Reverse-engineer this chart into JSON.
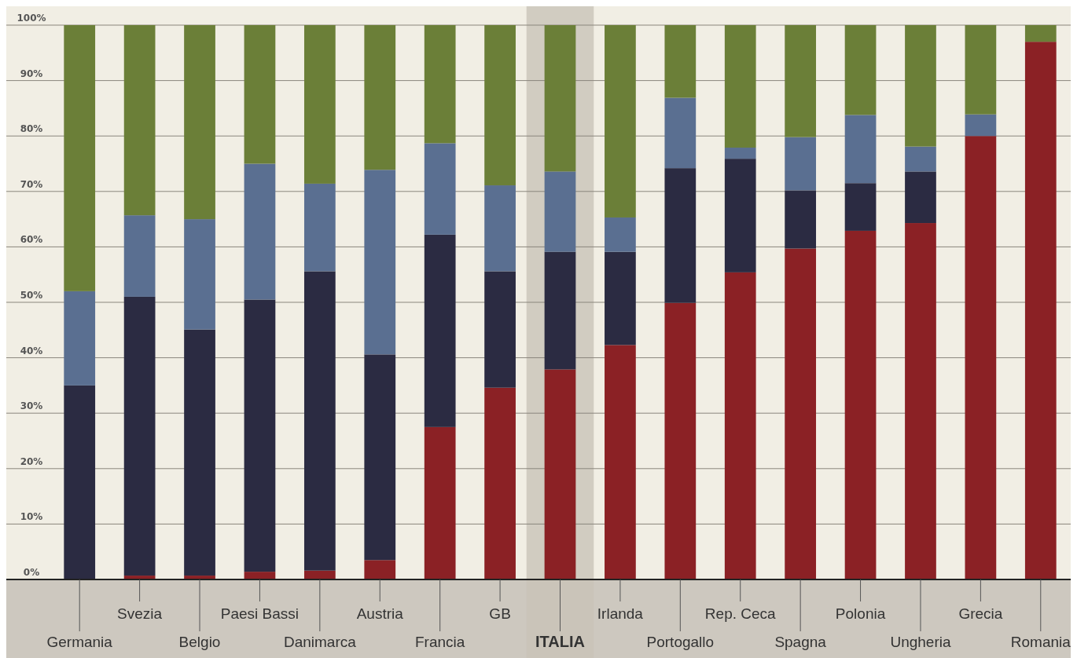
{
  "chart_data": {
    "type": "bar",
    "stacked": true,
    "categories": [
      "Germania",
      "Svezia",
      "Belgio",
      "Paesi Bassi",
      "Danimarca",
      "Austria",
      "Francia",
      "GB",
      "ITALIA",
      "Irlanda",
      "Portogallo",
      "Rep. Ceca",
      "Spagna",
      "Polonia",
      "Ungheria",
      "Grecia",
      "Romania"
    ],
    "series": [
      {
        "color": "#8b2125",
        "values": [
          0,
          0.7,
          0.7,
          1.4,
          1.6,
          3.5,
          27.5,
          34.6,
          37.9,
          42.3,
          49.9,
          55.4,
          59.7,
          62.9,
          64.3,
          80,
          97
        ]
      },
      {
        "color": "#2b2b42",
        "values": [
          35,
          50.3,
          44.4,
          49.1,
          54,
          37.1,
          34.7,
          21,
          21.2,
          16.8,
          24.3,
          20.5,
          10.5,
          8.6,
          9.3,
          0,
          0
        ]
      },
      {
        "color": "#5a6f91",
        "values": [
          17,
          14.7,
          19.9,
          24.5,
          15.8,
          33.3,
          16.5,
          15.5,
          14.5,
          6.2,
          12.7,
          2,
          9.6,
          12.3,
          4.5,
          3.9,
          0
        ]
      },
      {
        "color": "#6b7f38",
        "values": [
          48,
          34.3,
          35,
          25,
          28.6,
          26.1,
          21.3,
          28.9,
          26.4,
          34.7,
          13.1,
          22.1,
          20.2,
          16.2,
          21.9,
          16.1,
          3
        ]
      }
    ],
    "ylim": [
      0,
      100
    ],
    "yticks": [
      {
        "value": 0,
        "label": "0%"
      },
      {
        "value": 10,
        "label": "10%"
      },
      {
        "value": 20,
        "label": "20%"
      },
      {
        "value": 30,
        "label": "30%"
      },
      {
        "value": 40,
        "label": "40%"
      },
      {
        "value": 50,
        "label": "50%"
      },
      {
        "value": 60,
        "label": "60%"
      },
      {
        "value": 70,
        "label": "70%"
      },
      {
        "value": 80,
        "label": "80%"
      },
      {
        "value": 90,
        "label": "90%"
      },
      {
        "value": 100,
        "label": "100%"
      }
    ],
    "grid": "y",
    "bands": [
      {
        "axis": "x",
        "from": "ITALIA",
        "to": "ITALIA",
        "color": "#c9c3b8"
      }
    ]
  }
}
